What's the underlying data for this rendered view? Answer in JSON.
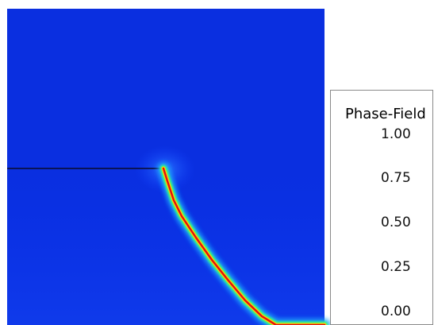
{
  "legend": {
    "title": "Phase-Field",
    "tick_labels": [
      "1.00",
      "0.75",
      "0.50",
      "0.25",
      "0.00"
    ],
    "band_colors": [
      "#ff0000",
      "#ff4200",
      "#ff7b00",
      "#ffb400",
      "#ffe000",
      "#e6ff00",
      "#b7ff00",
      "#7dff00",
      "#3aff00",
      "#00ff2c",
      "#00ff7a",
      "#00ffc0",
      "#00e8ff",
      "#00a6ff",
      "#0058ff",
      "#0018ff"
    ]
  },
  "plot": {
    "background_color": "#0a2fe0",
    "crack_core_color": "#e01010",
    "crack_halo_color": "#39ff7a"
  }
}
